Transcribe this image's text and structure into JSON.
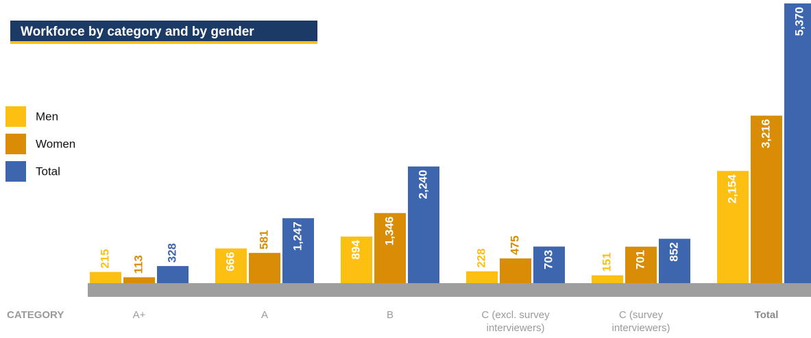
{
  "chart_data": {
    "type": "bar",
    "title": "Workforce by category and by gender",
    "xlabel": "CATEGORY",
    "categories": [
      "A+",
      "A",
      "B",
      "C (excl. survey interviewers)",
      "C (survey interviewers)",
      "Total"
    ],
    "series": [
      {
        "name": "Men",
        "color": "#fdbf12",
        "values": [
          215,
          666,
          894,
          228,
          151,
          2154
        ],
        "value_labels": [
          "215",
          "666",
          "894",
          "228",
          "151",
          "2,154"
        ]
      },
      {
        "name": "Women",
        "color": "#d98c06",
        "values": [
          113,
          581,
          1346,
          475,
          701,
          3216
        ],
        "value_labels": [
          "113",
          "581",
          "1,346",
          "475",
          "701",
          "3,216"
        ]
      },
      {
        "name": "Total",
        "color": "#3d66ae",
        "values": [
          328,
          1247,
          2240,
          703,
          852,
          5370
        ],
        "value_labels": [
          "328",
          "1,247",
          "2,240",
          "703",
          "852",
          "5,370"
        ]
      }
    ],
    "ylim": [
      0,
      5370
    ]
  }
}
